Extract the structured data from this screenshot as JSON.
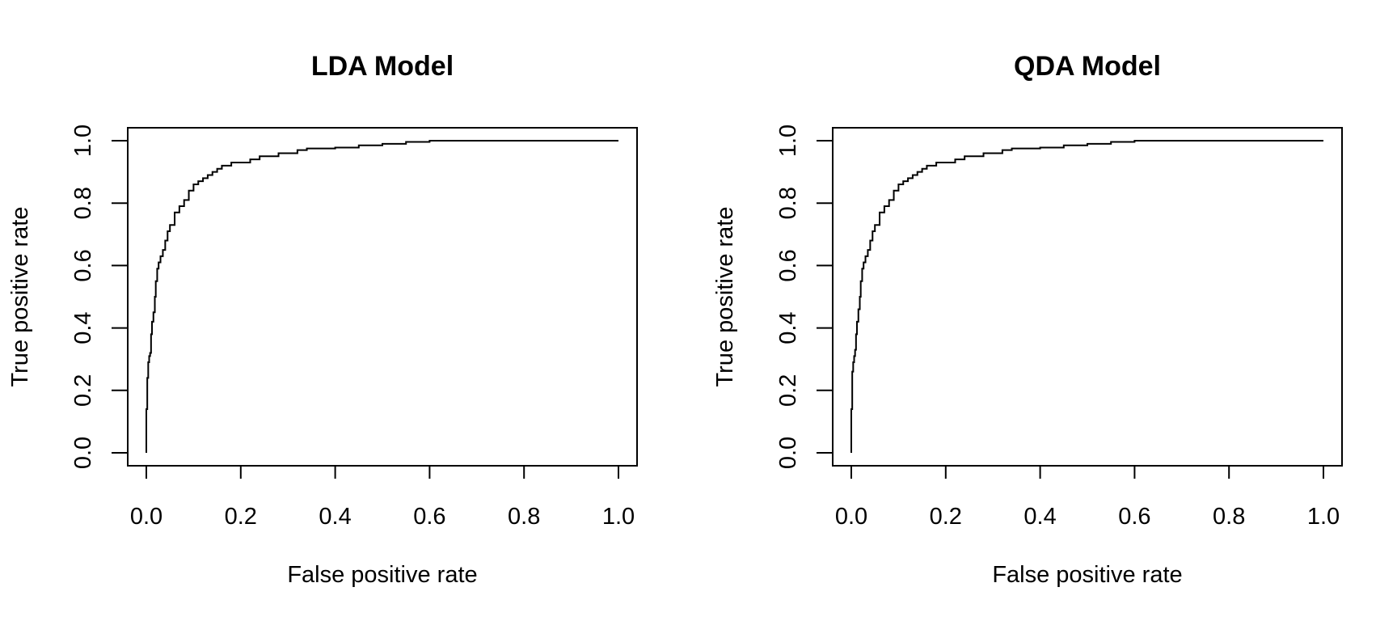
{
  "chart_data": [
    {
      "type": "line",
      "title": "LDA Model",
      "xlabel": "False positive rate",
      "ylabel": "True positive rate",
      "xlim": [
        0,
        1
      ],
      "ylim": [
        0,
        1
      ],
      "xticks": [
        "0.0",
        "0.2",
        "0.4",
        "0.6",
        "0.8",
        "1.0"
      ],
      "yticks": [
        "0.0",
        "0.2",
        "0.4",
        "0.6",
        "0.8",
        "1.0"
      ],
      "grid": false,
      "series": [
        {
          "x": [
            0,
            0.002,
            0.004,
            0.006,
            0.008,
            0.01,
            0.012,
            0.015,
            0.018,
            0.02,
            0.023,
            0.026,
            0.03,
            0.035,
            0.04,
            0.045,
            0.05,
            0.06,
            0.07,
            0.08,
            0.09,
            0.1,
            0.11,
            0.12,
            0.13,
            0.14,
            0.15,
            0.16,
            0.18,
            0.2,
            0.22,
            0.24,
            0.26,
            0.28,
            0.3,
            0.32,
            0.34,
            0.4,
            0.45,
            0.5,
            0.55,
            0.6,
            0.7,
            0.8,
            0.9,
            1.0
          ],
          "y": [
            0,
            0.14,
            0.24,
            0.29,
            0.31,
            0.32,
            0.38,
            0.42,
            0.45,
            0.5,
            0.55,
            0.59,
            0.61,
            0.63,
            0.65,
            0.68,
            0.71,
            0.73,
            0.77,
            0.79,
            0.81,
            0.84,
            0.86,
            0.87,
            0.88,
            0.89,
            0.9,
            0.91,
            0.92,
            0.93,
            0.93,
            0.94,
            0.95,
            0.95,
            0.96,
            0.96,
            0.97,
            0.975,
            0.978,
            0.985,
            0.99,
            0.996,
            1.0,
            1.0,
            1.0,
            1.0
          ]
        }
      ]
    },
    {
      "type": "line",
      "title": "QDA Model",
      "xlabel": "False positive rate",
      "ylabel": "True positive rate",
      "xlim": [
        0,
        1
      ],
      "ylim": [
        0,
        1
      ],
      "xticks": [
        "0.0",
        "0.2",
        "0.4",
        "0.6",
        "0.8",
        "1.0"
      ],
      "yticks": [
        "0.0",
        "0.2",
        "0.4",
        "0.6",
        "0.8",
        "1.0"
      ],
      "grid": false,
      "series": [
        {
          "x": [
            0,
            0.002,
            0.004,
            0.006,
            0.008,
            0.01,
            0.012,
            0.015,
            0.018,
            0.02,
            0.023,
            0.026,
            0.03,
            0.035,
            0.04,
            0.045,
            0.05,
            0.06,
            0.07,
            0.08,
            0.09,
            0.1,
            0.11,
            0.12,
            0.13,
            0.14,
            0.15,
            0.16,
            0.18,
            0.2,
            0.22,
            0.24,
            0.26,
            0.28,
            0.3,
            0.32,
            0.34,
            0.4,
            0.45,
            0.5,
            0.55,
            0.6,
            0.7,
            0.8,
            0.9,
            1.0
          ],
          "y": [
            0,
            0.14,
            0.26,
            0.29,
            0.31,
            0.33,
            0.38,
            0.42,
            0.46,
            0.5,
            0.55,
            0.59,
            0.61,
            0.63,
            0.65,
            0.68,
            0.71,
            0.73,
            0.77,
            0.79,
            0.81,
            0.84,
            0.86,
            0.87,
            0.88,
            0.89,
            0.9,
            0.91,
            0.92,
            0.93,
            0.93,
            0.94,
            0.95,
            0.95,
            0.96,
            0.96,
            0.97,
            0.975,
            0.978,
            0.985,
            0.99,
            0.996,
            1.0,
            1.0,
            1.0,
            1.0
          ]
        }
      ]
    }
  ]
}
